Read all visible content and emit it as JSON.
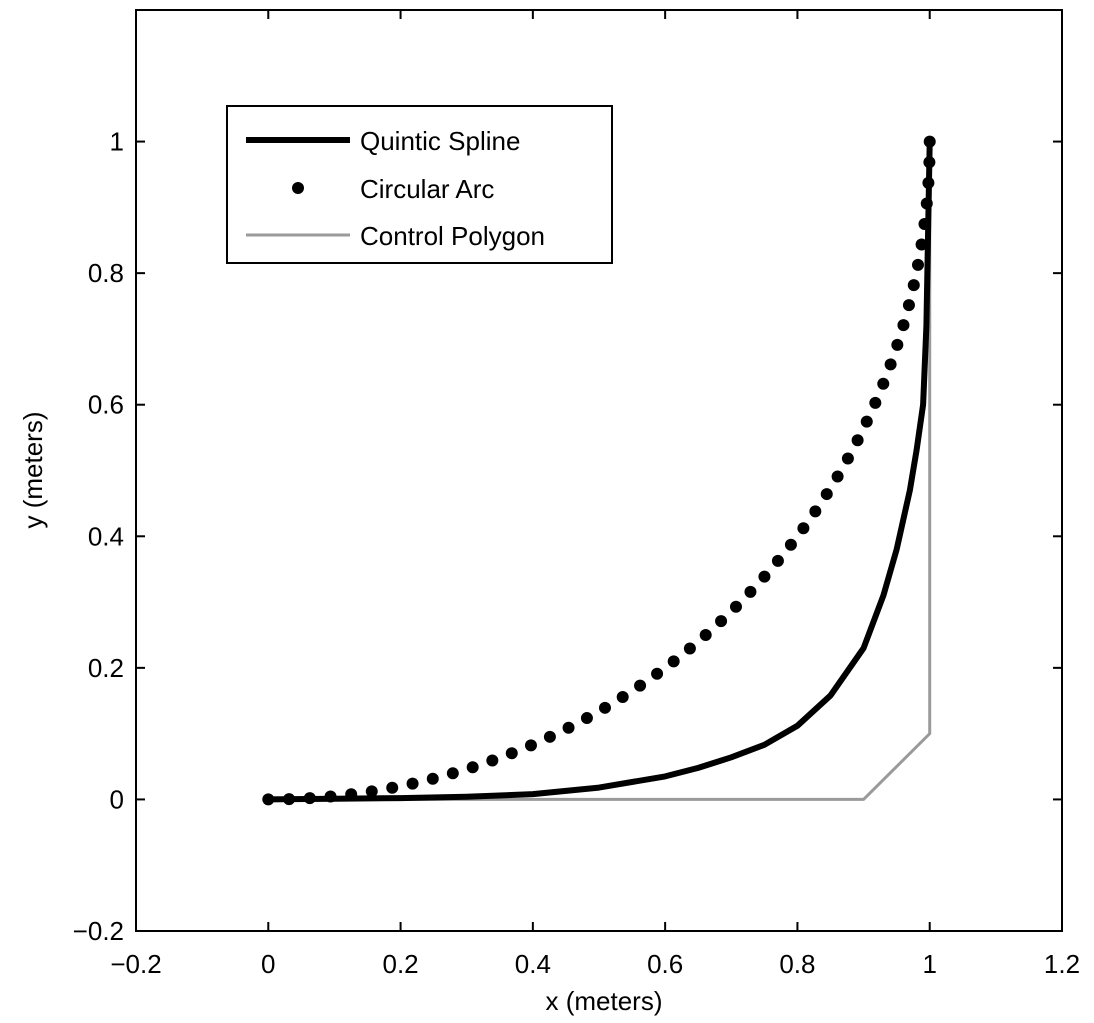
{
  "chart_data": {
    "type": "line",
    "title": "",
    "xlabel": "x (meters)",
    "ylabel": "y (meters)",
    "xlim": [
      -0.2,
      1.2
    ],
    "ylim": [
      -0.2,
      1.2
    ],
    "xticks": [
      -0.2,
      0,
      0.2,
      0.4,
      0.6,
      0.8,
      1,
      1.2
    ],
    "xtick_labels": [
      "−0.2",
      "0",
      "0.2",
      "0.4",
      "0.6",
      "0.8",
      "1",
      "1.2"
    ],
    "yticks": [
      -0.2,
      0,
      0.2,
      0.4,
      0.6,
      0.8,
      1
    ],
    "ytick_labels": [
      "−0.2",
      "0",
      "0.2",
      "0.4",
      "0.6",
      "0.8",
      "1"
    ],
    "grid": false,
    "legend_position": "top-left",
    "series": [
      {
        "name": "Quintic Spline",
        "style": "line",
        "color": "#000000",
        "x": [
          0,
          0.1,
          0.2,
          0.3,
          0.4,
          0.5,
          0.6,
          0.65,
          0.7,
          0.75,
          0.8,
          0.85,
          0.9,
          0.93,
          0.95,
          0.97,
          0.98,
          0.99,
          0.995,
          1.0
        ],
        "y": [
          0,
          0.001,
          0.002,
          0.004,
          0.008,
          0.018,
          0.035,
          0.048,
          0.064,
          0.083,
          0.112,
          0.158,
          0.23,
          0.31,
          0.38,
          0.47,
          0.53,
          0.6,
          0.72,
          1.0
        ]
      },
      {
        "name": "Circular Arc",
        "style": "markers",
        "color": "#000000",
        "center": [
          0,
          1
        ],
        "radius": 1,
        "points": 51,
        "x": [
          0,
          0.1,
          0.2,
          0.3,
          0.4,
          0.5,
          0.6,
          0.7,
          0.8,
          0.9,
          0.95,
          1.0
        ],
        "y": [
          0,
          0.005,
          0.02,
          0.046,
          0.083,
          0.134,
          0.2,
          0.286,
          0.4,
          0.564,
          0.688,
          1.0
        ]
      },
      {
        "name": "Control Polygon",
        "style": "line",
        "color": "#9a9a9a",
        "x": [
          0,
          0.9,
          1.0,
          1.0
        ],
        "y": [
          0,
          0,
          0.1,
          1.0
        ]
      }
    ]
  }
}
